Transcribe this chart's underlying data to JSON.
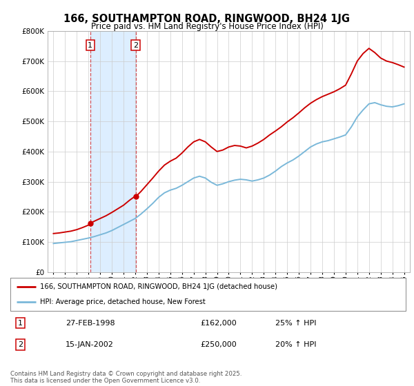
{
  "title": "166, SOUTHAMPTON ROAD, RINGWOOD, BH24 1JG",
  "subtitle": "Price paid vs. HM Land Registry's House Price Index (HPI)",
  "background_color": "#ffffff",
  "grid_color": "#cccccc",
  "sale1_date": 1998.15,
  "sale1_label": "1",
  "sale1_price": 162000,
  "sale2_date": 2002.04,
  "sale2_label": "2",
  "sale2_price": 250000,
  "legend_line1": "166, SOUTHAMPTON ROAD, RINGWOOD, BH24 1JG (detached house)",
  "legend_line2": "HPI: Average price, detached house, New Forest",
  "table_row1": [
    "1",
    "27-FEB-1998",
    "£162,000",
    "25% ↑ HPI"
  ],
  "table_row2": [
    "2",
    "15-JAN-2002",
    "£250,000",
    "20% ↑ HPI"
  ],
  "footer": "Contains HM Land Registry data © Crown copyright and database right 2025.\nThis data is licensed under the Open Government Licence v3.0.",
  "hpi_color": "#7ab8d9",
  "price_color": "#cc0000",
  "shade_color": "#ddeeff",
  "ylim": [
    0,
    800000
  ],
  "xlim": [
    1994.5,
    2025.5
  ],
  "years_hpi": [
    1995,
    1995.5,
    1996,
    1996.5,
    1997,
    1997.5,
    1998,
    1998.5,
    1999,
    1999.5,
    2000,
    2000.5,
    2001,
    2001.5,
    2002,
    2002.5,
    2003,
    2003.5,
    2004,
    2004.5,
    2005,
    2005.5,
    2006,
    2006.5,
    2007,
    2007.5,
    2008,
    2008.5,
    2009,
    2009.5,
    2010,
    2010.5,
    2011,
    2011.5,
    2012,
    2012.5,
    2013,
    2013.5,
    2014,
    2014.5,
    2015,
    2015.5,
    2016,
    2016.5,
    2017,
    2017.5,
    2018,
    2018.5,
    2019,
    2019.5,
    2020,
    2020.5,
    2021,
    2021.5,
    2022,
    2022.5,
    2023,
    2023.5,
    2024,
    2024.5,
    2025
  ],
  "hpi_values": [
    95000,
    97000,
    99000,
    101000,
    105000,
    109000,
    113000,
    118000,
    124000,
    130000,
    138000,
    148000,
    158000,
    168000,
    178000,
    193000,
    210000,
    228000,
    248000,
    263000,
    272000,
    278000,
    288000,
    300000,
    312000,
    318000,
    312000,
    298000,
    288000,
    293000,
    300000,
    305000,
    308000,
    306000,
    302000,
    306000,
    312000,
    322000,
    335000,
    350000,
    362000,
    372000,
    385000,
    400000,
    415000,
    425000,
    432000,
    436000,
    442000,
    448000,
    455000,
    482000,
    515000,
    538000,
    558000,
    562000,
    555000,
    550000,
    548000,
    552000,
    558000
  ],
  "years_price": [
    1995,
    1995.5,
    1996,
    1996.5,
    1997,
    1997.5,
    1998,
    1998.15,
    1998.5,
    1999,
    1999.5,
    2000,
    2000.5,
    2001,
    2001.5,
    2002,
    2002.04,
    2002.5,
    2003,
    2003.5,
    2004,
    2004.5,
    2005,
    2005.5,
    2006,
    2006.5,
    2007,
    2007.5,
    2008,
    2008.5,
    2009,
    2009.5,
    2010,
    2010.5,
    2011,
    2011.5,
    2012,
    2012.5,
    2013,
    2013.5,
    2014,
    2014.5,
    2015,
    2015.5,
    2016,
    2016.5,
    2017,
    2017.5,
    2018,
    2018.5,
    2019,
    2019.5,
    2020,
    2020.5,
    2021,
    2021.5,
    2022,
    2022.5,
    2023,
    2023.5,
    2024,
    2024.5,
    2025
  ],
  "price_values": [
    128000,
    130000,
    133000,
    136000,
    141000,
    148000,
    156000,
    162000,
    169000,
    178000,
    187000,
    198000,
    210000,
    222000,
    238000,
    252000,
    250000,
    268000,
    290000,
    312000,
    335000,
    355000,
    368000,
    378000,
    395000,
    415000,
    432000,
    440000,
    432000,
    415000,
    400000,
    405000,
    415000,
    420000,
    418000,
    412000,
    418000,
    428000,
    440000,
    455000,
    468000,
    482000,
    498000,
    512000,
    528000,
    545000,
    560000,
    572000,
    582000,
    590000,
    598000,
    608000,
    620000,
    658000,
    700000,
    725000,
    742000,
    728000,
    710000,
    700000,
    695000,
    688000,
    680000
  ]
}
